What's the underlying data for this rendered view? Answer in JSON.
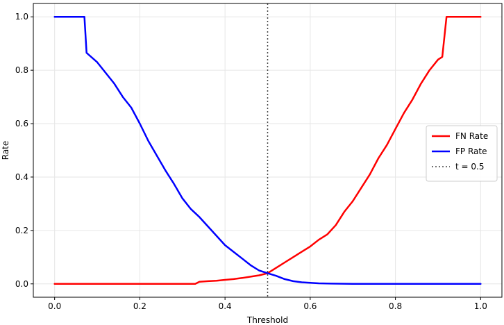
{
  "chart_data": {
    "type": "line",
    "title": "",
    "xlabel": "Threshold",
    "ylabel": "Rate",
    "xlim": [
      -0.05,
      1.05
    ],
    "ylim": [
      -0.05,
      1.05
    ],
    "xticks": [
      0.0,
      0.2,
      0.4,
      0.6,
      0.8,
      1.0
    ],
    "xtick_labels": [
      "0.0",
      "0.2",
      "0.4",
      "0.6",
      "0.8",
      "1.0"
    ],
    "yticks": [
      0.0,
      0.2,
      0.4,
      0.6,
      0.8,
      1.0
    ],
    "ytick_labels": [
      "0.0",
      "0.2",
      "0.4",
      "0.6",
      "0.8",
      "1.0"
    ],
    "grid": true,
    "legend": "center-right",
    "series": [
      {
        "name": "FN Rate",
        "color": "#ff0000",
        "style": "solid",
        "x": [
          0.0,
          0.1,
          0.2,
          0.3,
          0.33,
          0.34,
          0.36,
          0.38,
          0.4,
          0.42,
          0.44,
          0.46,
          0.48,
          0.5,
          0.52,
          0.54,
          0.56,
          0.58,
          0.6,
          0.62,
          0.64,
          0.66,
          0.68,
          0.7,
          0.72,
          0.74,
          0.76,
          0.78,
          0.8,
          0.82,
          0.84,
          0.86,
          0.88,
          0.9,
          0.91,
          0.92,
          0.95,
          1.0
        ],
        "y": [
          0.0,
          0.0,
          0.0,
          0.0,
          0.0,
          0.008,
          0.01,
          0.012,
          0.015,
          0.018,
          0.022,
          0.027,
          0.032,
          0.04,
          0.06,
          0.08,
          0.1,
          0.12,
          0.14,
          0.165,
          0.185,
          0.22,
          0.27,
          0.31,
          0.36,
          0.41,
          0.47,
          0.52,
          0.58,
          0.64,
          0.69,
          0.75,
          0.8,
          0.84,
          0.85,
          1.0,
          1.0,
          1.0
        ]
      },
      {
        "name": "FP Rate",
        "color": "#0000ff",
        "style": "solid",
        "x": [
          0.0,
          0.05,
          0.07,
          0.075,
          0.1,
          0.12,
          0.14,
          0.16,
          0.18,
          0.2,
          0.22,
          0.24,
          0.26,
          0.28,
          0.3,
          0.32,
          0.34,
          0.36,
          0.38,
          0.4,
          0.42,
          0.44,
          0.46,
          0.48,
          0.5,
          0.52,
          0.54,
          0.56,
          0.58,
          0.6,
          0.62,
          0.65,
          0.7,
          0.8,
          0.9,
          1.0
        ],
        "y": [
          1.0,
          1.0,
          1.0,
          0.865,
          0.83,
          0.79,
          0.75,
          0.7,
          0.66,
          0.6,
          0.535,
          0.48,
          0.425,
          0.375,
          0.32,
          0.28,
          0.25,
          0.215,
          0.18,
          0.145,
          0.12,
          0.095,
          0.07,
          0.05,
          0.04,
          0.03,
          0.018,
          0.01,
          0.006,
          0.004,
          0.002,
          0.001,
          0.0,
          0.0,
          0.0,
          0.0
        ]
      }
    ],
    "vline": {
      "x": 0.5,
      "name": "t = 0.5",
      "color": "#444444",
      "style": "dotted"
    }
  }
}
